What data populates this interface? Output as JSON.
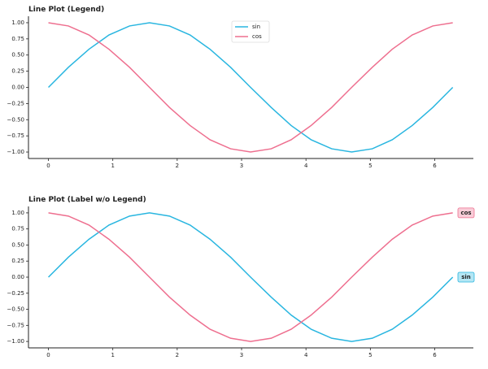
{
  "chart_data": [
    {
      "type": "line",
      "title": "Line Plot (Legend)",
      "x": [
        0,
        0.31,
        0.63,
        0.94,
        1.26,
        1.57,
        1.88,
        2.2,
        2.51,
        2.83,
        3.14,
        3.46,
        3.77,
        4.08,
        4.4,
        4.71,
        5.03,
        5.34,
        5.65,
        5.97,
        6.28
      ],
      "series": [
        {
          "name": "sin",
          "color": "#29b6e0",
          "values": [
            0,
            0.31,
            0.59,
            0.81,
            0.95,
            1,
            0.95,
            0.81,
            0.59,
            0.31,
            0,
            -0.31,
            -0.59,
            -0.81,
            -0.95,
            -1,
            -0.95,
            -0.81,
            -0.59,
            -0.31,
            0
          ]
        },
        {
          "name": "cos",
          "color": "#ee6f8f",
          "values": [
            1,
            0.95,
            0.81,
            0.59,
            0.31,
            0,
            -0.31,
            -0.59,
            -0.81,
            -0.95,
            -1,
            -0.95,
            -0.81,
            -0.59,
            -0.31,
            0,
            0.31,
            0.59,
            0.81,
            0.95,
            1
          ]
        }
      ],
      "xlim": [
        -0.31,
        6.6
      ],
      "xticks": [
        0,
        1,
        2,
        3,
        4,
        5,
        6
      ],
      "ylim": [
        -1.1,
        1.1
      ],
      "yticks": [
        {
          "value": -1,
          "label": "−1.00"
        },
        {
          "value": -0.75,
          "label": "−0.75"
        },
        {
          "value": -0.5,
          "label": "−0.50"
        },
        {
          "value": -0.25,
          "label": "−0.25"
        },
        {
          "value": 0,
          "label": "0.00"
        },
        {
          "value": 0.25,
          "label": "0.25"
        },
        {
          "value": 0.5,
          "label": "0.50"
        },
        {
          "value": 0.75,
          "label": "0.75"
        },
        {
          "value": 1,
          "label": "1.00"
        }
      ],
      "legend": "upper center"
    },
    {
      "type": "line",
      "title": "Line Plot (Label w/o Legend)",
      "x": [
        0,
        0.31,
        0.63,
        0.94,
        1.26,
        1.57,
        1.88,
        2.2,
        2.51,
        2.83,
        3.14,
        3.46,
        3.77,
        4.08,
        4.4,
        4.71,
        5.03,
        5.34,
        5.65,
        5.97,
        6.28
      ],
      "series": [
        {
          "name": "sin",
          "color": "#29b6e0",
          "values": [
            0,
            0.31,
            0.59,
            0.81,
            0.95,
            1,
            0.95,
            0.81,
            0.59,
            0.31,
            0,
            -0.31,
            -0.59,
            -0.81,
            -0.95,
            -1,
            -0.95,
            -0.81,
            -0.59,
            -0.31,
            0
          ]
        },
        {
          "name": "cos",
          "color": "#ee6f8f",
          "values": [
            1,
            0.95,
            0.81,
            0.59,
            0.31,
            0,
            -0.31,
            -0.59,
            -0.81,
            -0.95,
            -1,
            -0.95,
            -0.81,
            -0.59,
            -0.31,
            0,
            0.31,
            0.59,
            0.81,
            0.95,
            1
          ]
        }
      ],
      "xlim": [
        -0.31,
        6.6
      ],
      "xticks": [
        0,
        1,
        2,
        3,
        4,
        5,
        6
      ],
      "ylim": [
        -1.1,
        1.1
      ],
      "yticks": [
        {
          "value": -1,
          "label": "−1.00"
        },
        {
          "value": -0.75,
          "label": "−0.75"
        },
        {
          "value": -0.5,
          "label": "−0.50"
        },
        {
          "value": -0.25,
          "label": "−0.25"
        },
        {
          "value": 0,
          "label": "0.00"
        },
        {
          "value": 0.25,
          "label": "0.25"
        },
        {
          "value": 0.5,
          "label": "0.50"
        },
        {
          "value": 0.75,
          "label": "0.75"
        },
        {
          "value": 1,
          "label": "1.00"
        }
      ],
      "line_labels": true
    }
  ]
}
